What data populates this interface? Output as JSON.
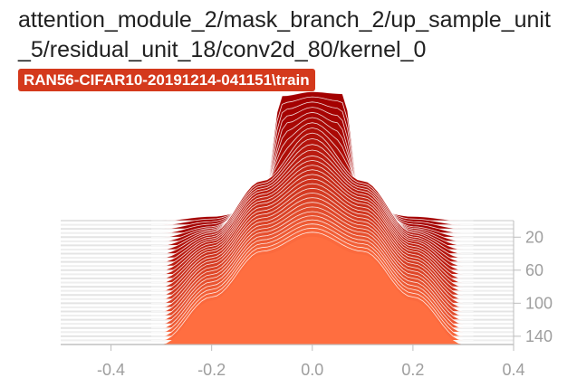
{
  "chart": {
    "title": "attention_module_2/mask_branch_2/up_sample_unit_5/residual_unit_18/conv2d_80/kernel_0",
    "run_tag": "RAN56-CIFAR10-20191214-041151\\train"
  },
  "chart_data": {
    "type": "area",
    "subtype": "histogram-offset",
    "title": "attention_module_2/mask_branch_2/up_sample_unit_5/residual_unit_18/conv2d_80/kernel_0",
    "xlabel": "",
    "ylabel": "",
    "xlim": [
      -0.5,
      0.4
    ],
    "x_ticks": [
      -0.4,
      -0.2,
      0.0,
      0.2,
      0.4
    ],
    "step_ticks": [
      20,
      60,
      100,
      140
    ],
    "step_range": [
      0,
      150
    ],
    "grid": false,
    "legend": "none",
    "colors": {
      "newest": "#ff6e40",
      "oldest": "#a30000",
      "outline": "#ffffff",
      "axis": "#bdbdbd",
      "badge": "#d4391c"
    },
    "histograms": [
      {
        "step": 0,
        "x": [
          -0.3,
          -0.2,
          -0.1,
          -0.06,
          0.0,
          0.06,
          0.1,
          0.2,
          0.3
        ],
        "counts": [
          0,
          2,
          6,
          60,
          62,
          61,
          6,
          2,
          0
        ]
      },
      {
        "step": 20,
        "x": [
          -0.3,
          -0.2,
          -0.1,
          -0.05,
          0.0,
          0.05,
          0.1,
          0.2,
          0.3
        ],
        "counts": [
          0,
          5,
          20,
          55,
          60,
          55,
          20,
          5,
          0
        ]
      },
      {
        "step": 40,
        "x": [
          -0.3,
          -0.2,
          -0.1,
          0.0,
          0.1,
          0.2,
          0.3
        ],
        "counts": [
          0,
          10,
          35,
          58,
          35,
          10,
          0
        ]
      },
      {
        "step": 60,
        "x": [
          -0.3,
          -0.2,
          -0.1,
          0.0,
          0.1,
          0.2,
          0.3
        ],
        "counts": [
          0,
          14,
          38,
          55,
          38,
          14,
          0
        ]
      },
      {
        "step": 80,
        "x": [
          -0.3,
          -0.2,
          -0.1,
          0.0,
          0.1,
          0.2,
          0.3
        ],
        "counts": [
          0,
          17,
          40,
          54,
          40,
          17,
          0
        ]
      },
      {
        "step": 100,
        "x": [
          -0.3,
          -0.2,
          -0.1,
          0.0,
          0.1,
          0.2,
          0.3
        ],
        "counts": [
          0,
          19,
          41,
          53,
          41,
          19,
          0
        ]
      },
      {
        "step": 120,
        "x": [
          -0.3,
          -0.2,
          -0.1,
          0.0,
          0.1,
          0.2,
          0.3
        ],
        "counts": [
          0,
          20,
          42,
          52,
          42,
          20,
          0
        ]
      },
      {
        "step": 149,
        "x": [
          -0.3,
          -0.2,
          -0.1,
          0.0,
          0.1,
          0.2,
          0.3
        ],
        "counts": [
          0,
          21,
          43,
          52,
          43,
          21,
          0
        ]
      }
    ]
  }
}
